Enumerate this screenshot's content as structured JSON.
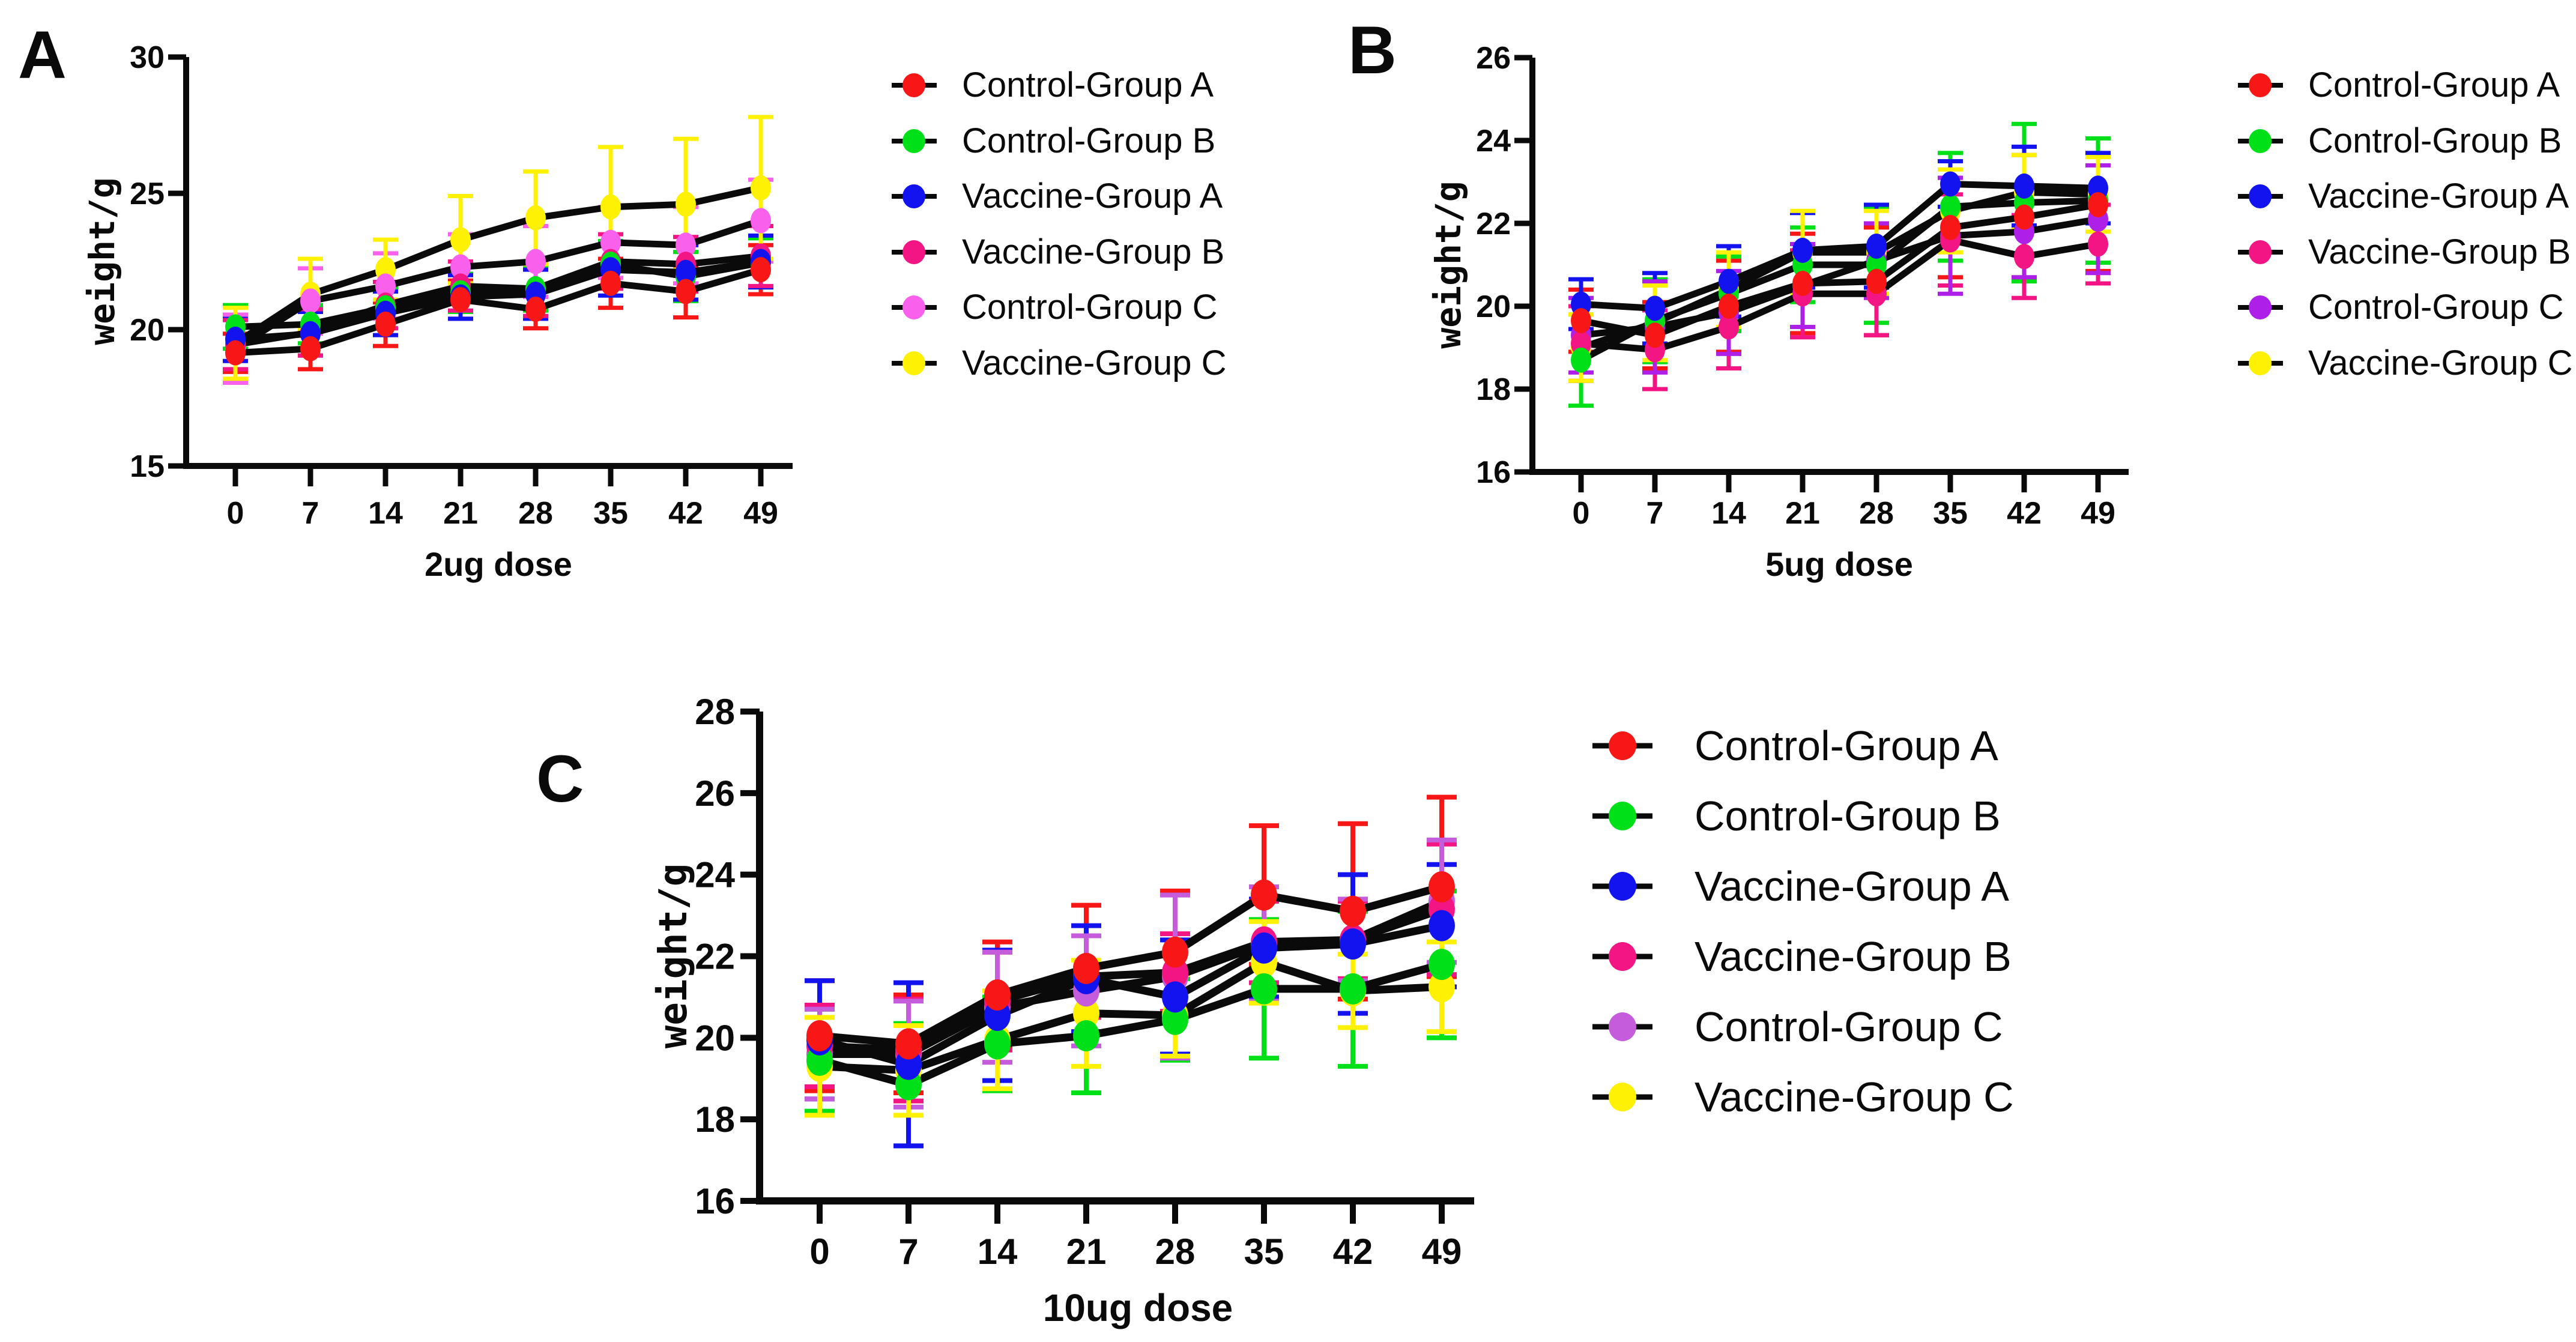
{
  "figure": {
    "background": "#ffffff",
    "line_color": "#0a0a0a"
  },
  "chart_data": [
    {
      "type": "line",
      "panel_label": "A",
      "xlabel": "2ug dose",
      "ylabel": "weight/g",
      "x": [
        0,
        7,
        14,
        21,
        28,
        35,
        42,
        49
      ],
      "ylim": [
        15,
        30
      ],
      "yticks": [
        15,
        20,
        25,
        30
      ],
      "legend_position": "right",
      "grid": false,
      "series": [
        {
          "name": "Control-Group A",
          "color": "#F81717",
          "values": [
            19.15,
            19.3,
            20.2,
            21.1,
            20.75,
            21.7,
            21.4,
            22.2
          ],
          "errors": [
            0.7,
            0.75,
            0.8,
            0.7,
            0.7,
            0.9,
            0.95,
            0.9
          ]
        },
        {
          "name": "Control-Group B",
          "color": "#00E019",
          "values": [
            20.1,
            20.2,
            20.8,
            21.35,
            21.5,
            22.4,
            21.95,
            22.45
          ],
          "errors": [
            0.8,
            0.7,
            0.75,
            0.7,
            0.8,
            0.85,
            0.9,
            0.9
          ]
        },
        {
          "name": "Vaccine-Group A",
          "color": "#1313F0",
          "values": [
            19.65,
            19.85,
            20.6,
            21.2,
            21.3,
            22.2,
            22.1,
            22.5
          ],
          "errors": [
            0.8,
            0.8,
            0.8,
            0.8,
            0.9,
            0.95,
            1.0,
            0.95
          ]
        },
        {
          "name": "Vaccine-Group B",
          "color": "#F41585",
          "values": [
            19.45,
            19.9,
            20.9,
            21.6,
            21.5,
            22.5,
            22.4,
            22.7
          ],
          "errors": [
            0.9,
            0.85,
            0.85,
            0.9,
            1.0,
            1.0,
            1.0,
            1.1
          ]
        },
        {
          "name": "Control-Group C",
          "color": "#F960EC",
          "values": [
            19.3,
            21.05,
            21.6,
            22.3,
            22.5,
            23.2,
            23.1,
            24.0
          ],
          "errors": [
            1.25,
            1.2,
            1.2,
            1.2,
            1.3,
            1.3,
            1.4,
            1.5
          ]
        },
        {
          "name": "Vaccine-Group C",
          "color": "#FEF102",
          "values": [
            19.5,
            21.3,
            22.2,
            23.3,
            24.1,
            24.5,
            24.6,
            25.2
          ],
          "errors": [
            1.3,
            1.3,
            1.1,
            1.6,
            1.7,
            2.2,
            2.4,
            2.6
          ]
        }
      ]
    },
    {
      "type": "line",
      "panel_label": "B",
      "xlabel": "5ug dose",
      "ylabel": "weight/g",
      "x": [
        0,
        7,
        14,
        21,
        28,
        35,
        42,
        49
      ],
      "ylim": [
        16,
        26
      ],
      "yticks": [
        16,
        18,
        20,
        22,
        24,
        26
      ],
      "legend_position": "right",
      "grid": false,
      "series": [
        {
          "name": "Control-Group A",
          "color": "#F81717",
          "values": [
            19.65,
            19.3,
            20.0,
            20.55,
            20.6,
            21.9,
            22.15,
            22.45
          ],
          "errors": [
            0.75,
            0.8,
            1.1,
            1.2,
            1.3,
            1.2,
            1.5,
            1.6
          ]
        },
        {
          "name": "Control-Group B",
          "color": "#00E019",
          "values": [
            18.7,
            19.65,
            20.3,
            21.0,
            21.0,
            22.4,
            22.5,
            22.55
          ],
          "errors": [
            1.1,
            1.0,
            0.9,
            0.9,
            1.4,
            1.3,
            1.9,
            1.5
          ]
        },
        {
          "name": "Vaccine-Group A",
          "color": "#1313F0",
          "values": [
            20.05,
            19.95,
            20.6,
            21.35,
            21.45,
            22.95,
            22.9,
            22.85
          ],
          "errors": [
            0.6,
            0.85,
            0.85,
            0.9,
            1.0,
            0.55,
            0.95,
            0.85
          ]
        },
        {
          "name": "Vaccine-Group B",
          "color": "#F41585",
          "values": [
            19.1,
            18.95,
            19.5,
            20.3,
            20.3,
            21.6,
            21.2,
            21.5
          ],
          "errors": [
            0.9,
            0.95,
            1.0,
            1.05,
            1.0,
            1.1,
            1.0,
            0.95
          ]
        },
        {
          "name": "Control-Group C",
          "color": "#AE1FE8",
          "values": [
            19.3,
            19.5,
            19.85,
            20.5,
            21.1,
            21.7,
            21.8,
            22.1
          ],
          "errors": [
            0.9,
            1.1,
            1.0,
            1.0,
            0.9,
            1.4,
            1.1,
            1.3
          ]
        },
        {
          "name": "Vaccine-Group C",
          "color": "#FEF102",
          "values": [
            19.0,
            19.6,
            20.4,
            21.3,
            21.3,
            22.3,
            22.75,
            22.7
          ],
          "errors": [
            0.8,
            0.9,
            0.9,
            1.0,
            1.0,
            1.0,
            0.9,
            0.9
          ]
        }
      ]
    },
    {
      "type": "line",
      "panel_label": "C",
      "xlabel": "10ug dose",
      "ylabel": "weight/g",
      "x": [
        0,
        7,
        14,
        21,
        28,
        35,
        42,
        49
      ],
      "ylim": [
        16,
        28
      ],
      "yticks": [
        16,
        18,
        20,
        22,
        24,
        26,
        28
      ],
      "legend_position": "right",
      "grid": false,
      "series": [
        {
          "name": "Control-Group A",
          "color": "#F81717",
          "values": [
            20.05,
            19.85,
            21.05,
            21.7,
            22.1,
            23.5,
            23.1,
            23.7
          ],
          "errors": [
            1.35,
            1.2,
            1.3,
            1.55,
            1.5,
            1.7,
            2.15,
            2.2
          ]
        },
        {
          "name": "Control-Group B",
          "color": "#00E019",
          "values": [
            19.45,
            18.85,
            19.85,
            20.05,
            20.45,
            21.2,
            21.2,
            21.8
          ],
          "errors": [
            1.25,
            1.5,
            1.15,
            1.4,
            1.0,
            1.7,
            1.9,
            1.8
          ]
        },
        {
          "name": "Vaccine-Group A",
          "color": "#1313F0",
          "values": [
            19.95,
            19.35,
            20.55,
            21.45,
            21.0,
            22.2,
            22.3,
            22.75
          ],
          "errors": [
            1.45,
            2.0,
            1.6,
            1.3,
            1.4,
            1.2,
            1.7,
            1.5
          ]
        },
        {
          "name": "Vaccine-Group B",
          "color": "#F41585",
          "values": [
            19.8,
            19.7,
            20.9,
            21.5,
            21.6,
            22.35,
            22.4,
            23.15
          ],
          "errors": [
            1.0,
            1.25,
            1.2,
            1.0,
            0.95,
            1.0,
            0.95,
            1.6
          ]
        },
        {
          "name": "Control-Group C",
          "color": "#C55CDB",
          "values": [
            19.6,
            19.6,
            20.75,
            21.15,
            21.5,
            22.3,
            22.4,
            23.35
          ],
          "errors": [
            1.1,
            1.3,
            1.35,
            1.35,
            2.0,
            1.4,
            1.0,
            1.5
          ]
        },
        {
          "name": "Vaccine-Group C",
          "color": "#FEF102",
          "values": [
            19.3,
            19.2,
            19.95,
            20.6,
            20.55,
            21.85,
            21.15,
            21.25
          ],
          "errors": [
            1.2,
            1.1,
            1.2,
            1.3,
            1.0,
            1.0,
            0.9,
            1.1
          ]
        }
      ]
    }
  ]
}
